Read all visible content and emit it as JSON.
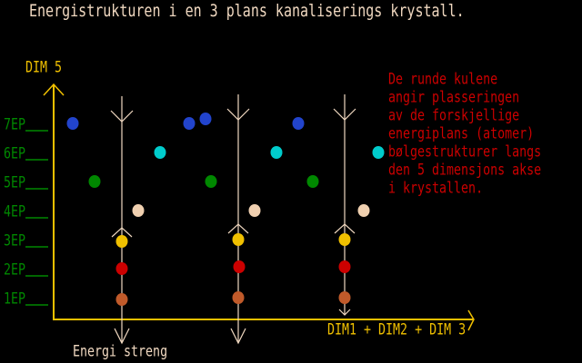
{
  "title": "Energistrukturen i en 3 plans kanaliserings krystall.",
  "axis_y_label": "DIM 5",
  "axis_x_label": "DIM1 + DIM2 + DIM 3",
  "string_label": "Energi streng",
  "levels": [
    "7EP",
    "6EP",
    "5EP",
    "4EP",
    "3EP",
    "2EP",
    "1EP"
  ],
  "note_lines": [
    "De runde kulene",
    "angir plasseringen",
    "av de forskjellige",
    "energiplans (atomer)",
    "bølgestrukturer langs",
    "den 5 dimensjons akse",
    "i krystallen."
  ],
  "colors": {
    "axis": "#f0c000",
    "string": "#f0d8c0",
    "level_labels": "#008800",
    "note": "#cc0000",
    "7EP": "#2244cc",
    "6EP": "#00cccc",
    "5EP": "#008800",
    "4EP": "#f0d0b0",
    "3EP": "#f0c000",
    "2EP": "#cc0000",
    "1EP": "#c05a2a"
  }
}
